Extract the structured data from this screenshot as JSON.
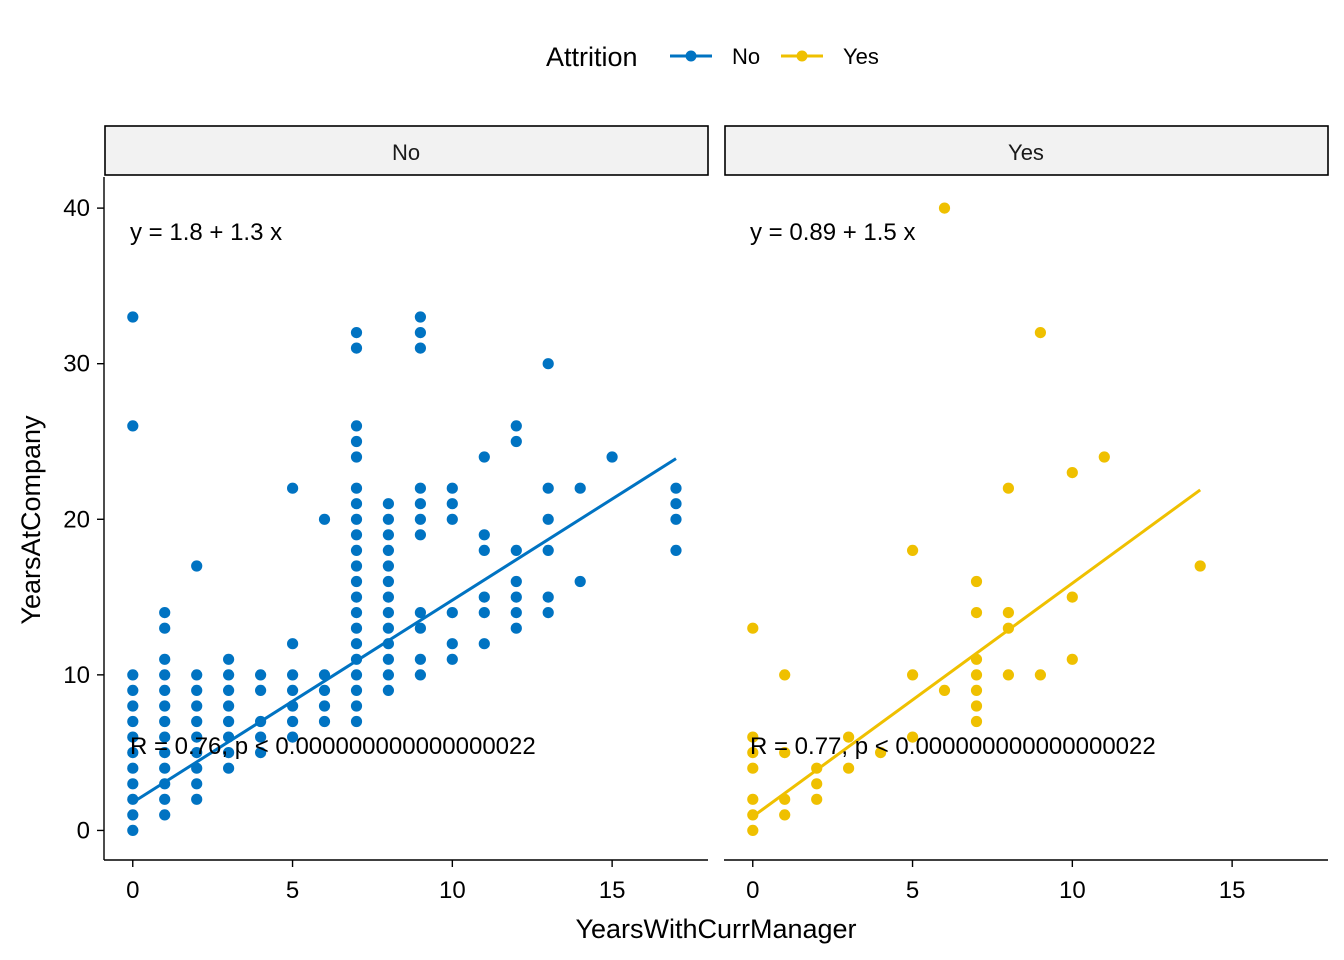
{
  "chart_data": {
    "type": "scatter",
    "xlabel": "YearsWithCurrManager",
    "ylabel": "YearsAtCompany",
    "xlim": [
      -0.9,
      18
    ],
    "ylim": [
      -1.9,
      42
    ],
    "x_ticks": [
      0,
      5,
      10,
      15
    ],
    "y_ticks": [
      0,
      10,
      20,
      30,
      40
    ],
    "grid": false,
    "legend": {
      "title": "Attrition",
      "position": "top",
      "entries": [
        {
          "label": "No",
          "color": "#0073C2"
        },
        {
          "label": "Yes",
          "color": "#EFC000"
        }
      ]
    },
    "panels": [
      {
        "strip_label": "No",
        "color": "#0073C2",
        "regression": {
          "intercept": 1.8,
          "slope": 1.3,
          "x_range": [
            0,
            17
          ]
        },
        "eq_label": "y = 1.8 + 1.3 x",
        "r_label": "R = 0.76, p < 0.000000000000000022",
        "points": [
          [
            0,
            0
          ],
          [
            0,
            1
          ],
          [
            0,
            2
          ],
          [
            0,
            3
          ],
          [
            0,
            4
          ],
          [
            0,
            5
          ],
          [
            0,
            6
          ],
          [
            0,
            7
          ],
          [
            0,
            8
          ],
          [
            0,
            9
          ],
          [
            0,
            10
          ],
          [
            0,
            26
          ],
          [
            0,
            33
          ],
          [
            1,
            1
          ],
          [
            1,
            2
          ],
          [
            1,
            3
          ],
          [
            1,
            4
          ],
          [
            1,
            5
          ],
          [
            1,
            6
          ],
          [
            1,
            7
          ],
          [
            1,
            8
          ],
          [
            1,
            9
          ],
          [
            1,
            10
          ],
          [
            1,
            11
          ],
          [
            1,
            13
          ],
          [
            1,
            14
          ],
          [
            2,
            2
          ],
          [
            2,
            3
          ],
          [
            2,
            4
          ],
          [
            2,
            5
          ],
          [
            2,
            6
          ],
          [
            2,
            7
          ],
          [
            2,
            8
          ],
          [
            2,
            9
          ],
          [
            2,
            10
          ],
          [
            2,
            17
          ],
          [
            3,
            4
          ],
          [
            3,
            5
          ],
          [
            3,
            6
          ],
          [
            3,
            7
          ],
          [
            3,
            8
          ],
          [
            3,
            9
          ],
          [
            3,
            10
          ],
          [
            3,
            11
          ],
          [
            4,
            5
          ],
          [
            4,
            6
          ],
          [
            4,
            7
          ],
          [
            4,
            9
          ],
          [
            4,
            10
          ],
          [
            5,
            6
          ],
          [
            5,
            7
          ],
          [
            5,
            8
          ],
          [
            5,
            9
          ],
          [
            5,
            10
          ],
          [
            5,
            12
          ],
          [
            5,
            22
          ],
          [
            6,
            7
          ],
          [
            6,
            8
          ],
          [
            6,
            9
          ],
          [
            6,
            10
          ],
          [
            6,
            20
          ],
          [
            7,
            7
          ],
          [
            7,
            8
          ],
          [
            7,
            9
          ],
          [
            7,
            10
          ],
          [
            7,
            11
          ],
          [
            7,
            12
          ],
          [
            7,
            13
          ],
          [
            7,
            14
          ],
          [
            7,
            15
          ],
          [
            7,
            16
          ],
          [
            7,
            17
          ],
          [
            7,
            18
          ],
          [
            7,
            19
          ],
          [
            7,
            20
          ],
          [
            7,
            21
          ],
          [
            7,
            22
          ],
          [
            7,
            24
          ],
          [
            7,
            25
          ],
          [
            7,
            26
          ],
          [
            7,
            31
          ],
          [
            7,
            32
          ],
          [
            8,
            9
          ],
          [
            8,
            10
          ],
          [
            8,
            11
          ],
          [
            8,
            12
          ],
          [
            8,
            13
          ],
          [
            8,
            14
          ],
          [
            8,
            15
          ],
          [
            8,
            16
          ],
          [
            8,
            17
          ],
          [
            8,
            18
          ],
          [
            8,
            19
          ],
          [
            8,
            20
          ],
          [
            8,
            21
          ],
          [
            9,
            10
          ],
          [
            9,
            11
          ],
          [
            9,
            13
          ],
          [
            9,
            14
          ],
          [
            9,
            19
          ],
          [
            9,
            20
          ],
          [
            9,
            21
          ],
          [
            9,
            22
          ],
          [
            9,
            31
          ],
          [
            9,
            32
          ],
          [
            9,
            33
          ],
          [
            10,
            11
          ],
          [
            10,
            12
          ],
          [
            10,
            14
          ],
          [
            10,
            20
          ],
          [
            10,
            21
          ],
          [
            10,
            22
          ],
          [
            11,
            12
          ],
          [
            11,
            14
          ],
          [
            11,
            15
          ],
          [
            11,
            18
          ],
          [
            11,
            19
          ],
          [
            11,
            24
          ],
          [
            12,
            13
          ],
          [
            12,
            14
          ],
          [
            12,
            15
          ],
          [
            12,
            16
          ],
          [
            12,
            18
          ],
          [
            12,
            25
          ],
          [
            12,
            26
          ],
          [
            13,
            14
          ],
          [
            13,
            15
          ],
          [
            13,
            18
          ],
          [
            13,
            20
          ],
          [
            13,
            22
          ],
          [
            13,
            30
          ],
          [
            14,
            16
          ],
          [
            14,
            22
          ],
          [
            15,
            24
          ],
          [
            17,
            18
          ],
          [
            17,
            20
          ],
          [
            17,
            21
          ],
          [
            17,
            22
          ]
        ]
      },
      {
        "strip_label": "Yes",
        "color": "#EFC000",
        "regression": {
          "intercept": 0.89,
          "slope": 1.5,
          "x_range": [
            0,
            14
          ]
        },
        "eq_label": "y = 0.89 + 1.5 x",
        "r_label": "R = 0.77, p < 0.000000000000000022",
        "points": [
          [
            0,
            0
          ],
          [
            0,
            1
          ],
          [
            0,
            2
          ],
          [
            0,
            4
          ],
          [
            0,
            5
          ],
          [
            0,
            6
          ],
          [
            0,
            13
          ],
          [
            1,
            1
          ],
          [
            1,
            2
          ],
          [
            1,
            5
          ],
          [
            1,
            10
          ],
          [
            2,
            2
          ],
          [
            2,
            3
          ],
          [
            2,
            4
          ],
          [
            3,
            4
          ],
          [
            3,
            6
          ],
          [
            4,
            5
          ],
          [
            5,
            6
          ],
          [
            5,
            10
          ],
          [
            5,
            18
          ],
          [
            6,
            9
          ],
          [
            6,
            40
          ],
          [
            7,
            7
          ],
          [
            7,
            8
          ],
          [
            7,
            9
          ],
          [
            7,
            10
          ],
          [
            7,
            11
          ],
          [
            7,
            14
          ],
          [
            7,
            16
          ],
          [
            8,
            10
          ],
          [
            8,
            13
          ],
          [
            8,
            14
          ],
          [
            8,
            22
          ],
          [
            9,
            10
          ],
          [
            9,
            32
          ],
          [
            10,
            11
          ],
          [
            10,
            15
          ],
          [
            10,
            23
          ],
          [
            11,
            24
          ],
          [
            14,
            17
          ]
        ]
      }
    ]
  }
}
